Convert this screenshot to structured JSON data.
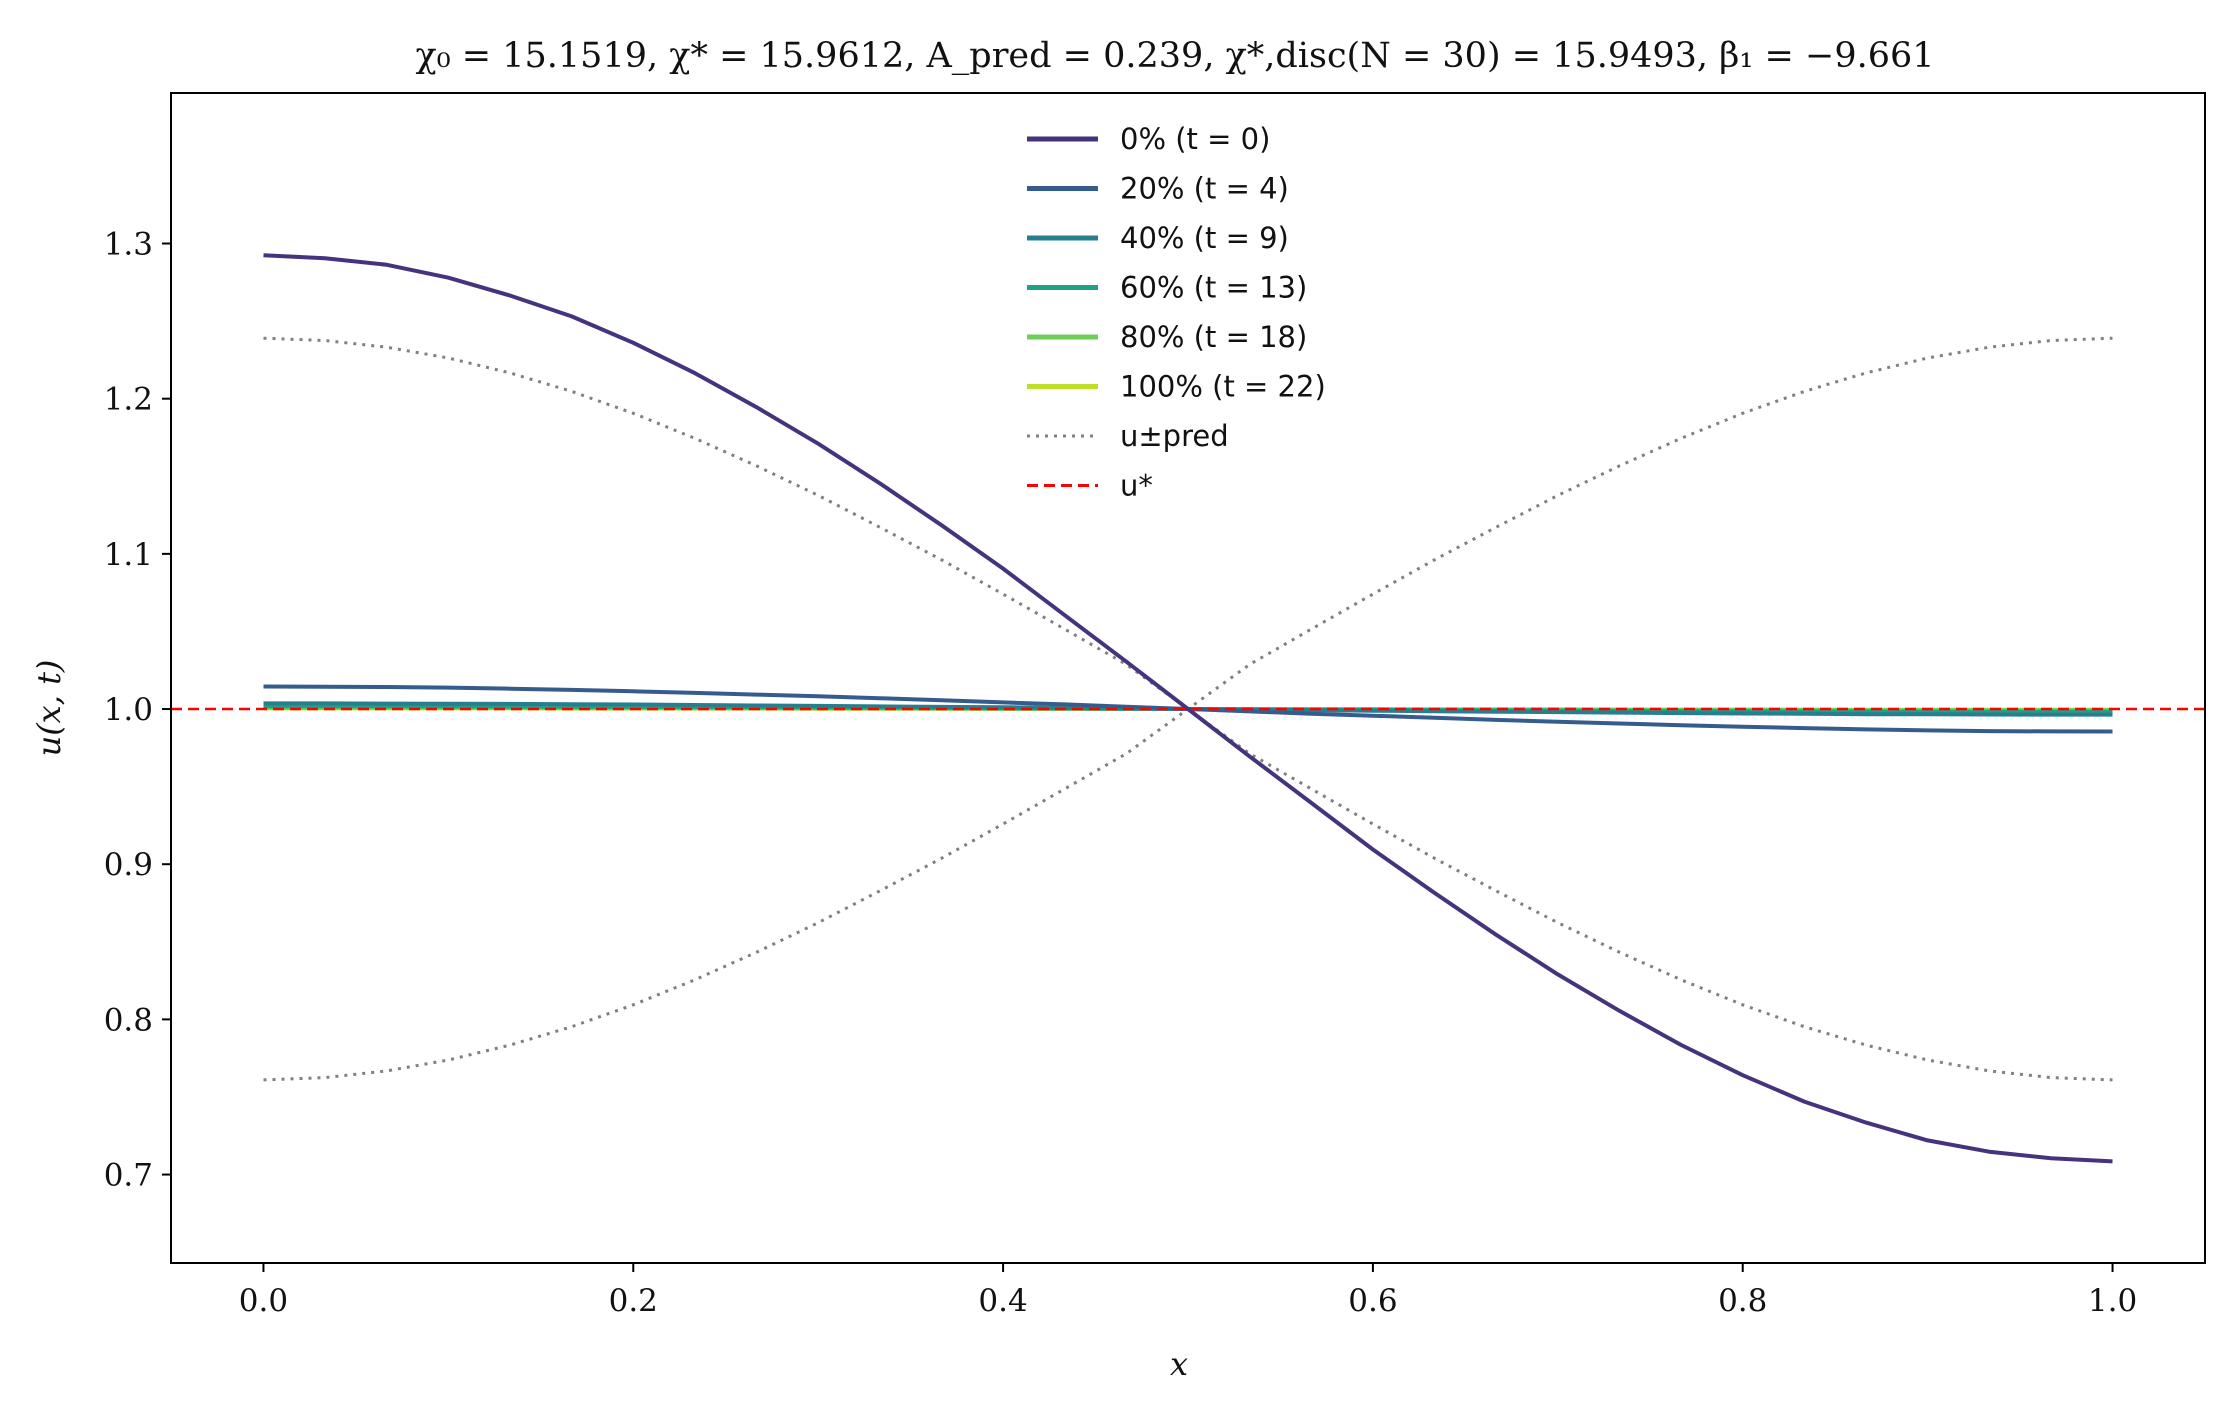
{
  "chart_data": {
    "type": "line",
    "title": "χ₀ = 15.1519,  χ* = 15.9612,  A_pred = 0.239,  χ*,disc(N = 30) = 15.9493,  β₁ = −9.661",
    "xlabel": "x",
    "ylabel": "u(x, t)",
    "xlim": [
      -0.05,
      1.05
    ],
    "ylim": [
      0.643,
      1.397
    ],
    "xticks": [
      0.0,
      0.2,
      0.4,
      0.6,
      0.8,
      1.0
    ],
    "xtick_labels": [
      "0.0",
      "0.2",
      "0.4",
      "0.6",
      "0.8",
      "1.0"
    ],
    "yticks": [
      0.7,
      0.8,
      0.9,
      1.0,
      1.1,
      1.2,
      1.3
    ],
    "ytick_labels": [
      "0.7",
      "0.8",
      "0.9",
      "1.0",
      "1.1",
      "1.2",
      "1.3"
    ],
    "grid": false,
    "legend_position": "top-center",
    "x": [
      0.0,
      0.0333,
      0.0667,
      0.1,
      0.1333,
      0.1667,
      0.2,
      0.2333,
      0.2667,
      0.3,
      0.3333,
      0.3667,
      0.4,
      0.4333,
      0.4667,
      0.5,
      0.5333,
      0.5667,
      0.6,
      0.6333,
      0.6667,
      0.7,
      0.7333,
      0.7667,
      0.8,
      0.8333,
      0.8667,
      0.9,
      0.9333,
      0.9667,
      1.0
    ],
    "series": [
      {
        "name": "0% (t = 0)",
        "color": "#46337e",
        "style": "solid",
        "values": [
          1.2925,
          1.2905,
          1.2863,
          1.278,
          1.2665,
          1.253,
          1.236,
          1.2165,
          1.1945,
          1.171,
          1.1455,
          1.1185,
          1.0905,
          1.0605,
          1.0305,
          1.0,
          0.9695,
          0.9395,
          0.9095,
          0.8815,
          0.8545,
          0.829,
          0.8055,
          0.7835,
          0.764,
          0.747,
          0.7335,
          0.722,
          0.7147,
          0.7105,
          0.7085
        ]
      },
      {
        "name": "20% (t = 4)",
        "color": "#365c8d",
        "style": "solid",
        "values": [
          1.0145,
          1.0144,
          1.0142,
          1.0138,
          1.0131,
          1.0123,
          1.0114,
          1.0104,
          1.0093,
          1.0082,
          1.007,
          1.0056,
          1.0043,
          1.003,
          1.0015,
          1.0,
          0.9985,
          0.997,
          0.9957,
          0.9944,
          0.993,
          0.9918,
          0.9907,
          0.9896,
          0.9886,
          0.9877,
          0.9869,
          0.9862,
          0.9858,
          0.9856,
          0.9855
        ]
      },
      {
        "name": "40% (t = 9)",
        "color": "#277f8e",
        "style": "solid",
        "values": [
          1.0036,
          1.0036,
          1.0035,
          1.0034,
          1.0033,
          1.0031,
          1.0029,
          1.0026,
          1.0023,
          1.002,
          1.0017,
          1.0014,
          1.0011,
          1.0007,
          1.0004,
          1.0,
          0.9996,
          0.9993,
          0.9989,
          0.9986,
          0.9983,
          0.998,
          0.9977,
          0.9974,
          0.9971,
          0.9969,
          0.9967,
          0.9966,
          0.9965,
          0.9964,
          0.9964
        ]
      },
      {
        "name": "60% (t = 13)",
        "color": "#1fa187",
        "style": "solid",
        "values": [
          1.0018,
          1.0018,
          1.0018,
          1.0017,
          1.0016,
          1.0015,
          1.0014,
          1.0013,
          1.0012,
          1.001,
          1.0009,
          1.0007,
          1.0005,
          1.0004,
          1.0002,
          1.0,
          0.9998,
          0.9996,
          0.9995,
          0.9993,
          0.9991,
          0.999,
          0.9988,
          0.9987,
          0.9986,
          0.9985,
          0.9984,
          0.9983,
          0.9982,
          0.9982,
          0.9982
        ]
      },
      {
        "name": "80% (t = 18)",
        "color": "#6ece58",
        "style": "solid",
        "values": [
          1.0008,
          1.0008,
          1.0008,
          1.0008,
          1.0007,
          1.0007,
          1.0006,
          1.0006,
          1.0005,
          1.0005,
          1.0004,
          1.0003,
          1.0002,
          1.0002,
          1.0001,
          1.0,
          0.9999,
          0.9998,
          0.9998,
          0.9997,
          0.9996,
          0.9995,
          0.9995,
          0.9994,
          0.9994,
          0.9993,
          0.9993,
          0.9992,
          0.9992,
          0.9992,
          0.9992
        ]
      },
      {
        "name": "100% (t = 22)",
        "color": "#bddf26",
        "style": "solid",
        "values": [
          1.0004,
          1.0004,
          1.0004,
          1.0004,
          1.0004,
          1.0003,
          1.0003,
          1.0003,
          1.0003,
          1.0002,
          1.0002,
          1.0002,
          1.0001,
          1.0001,
          1.0,
          1.0,
          1.0,
          0.9999,
          0.9999,
          0.9998,
          0.9998,
          0.9998,
          0.9997,
          0.9997,
          0.9997,
          0.9997,
          0.9996,
          0.9996,
          0.9996,
          0.9996,
          0.9996
        ]
      },
      {
        "name": "u±pred (upper)",
        "color": "#808080",
        "style": "dotted",
        "values": [
          1.239,
          1.2375,
          1.2332,
          1.2262,
          1.2166,
          1.2047,
          1.1906,
          1.1745,
          1.1567,
          1.1377,
          1.1172,
          1.0962,
          1.0741,
          1.0515,
          1.0287,
          1.0,
          0.9713,
          0.9485,
          0.9259,
          0.9038,
          0.8828,
          0.8623,
          0.8433,
          0.8255,
          0.8094,
          0.7953,
          0.7834,
          0.7738,
          0.7668,
          0.7625,
          0.761
        ]
      },
      {
        "name": "u±pred (lower)",
        "color": "#808080",
        "style": "dotted",
        "values": [
          0.761,
          0.7625,
          0.7668,
          0.7738,
          0.7834,
          0.7953,
          0.8094,
          0.8255,
          0.8433,
          0.8623,
          0.8828,
          0.9038,
          0.9259,
          0.9485,
          0.9713,
          1.0,
          1.0287,
          1.0515,
          1.0741,
          1.0962,
          1.1172,
          1.1377,
          1.1567,
          1.1745,
          1.1906,
          1.2047,
          1.2166,
          1.2262,
          1.2332,
          1.2375,
          1.239
        ]
      }
    ],
    "hline": {
      "name": "u*",
      "y": 1.0,
      "color": "#ff0000",
      "style": "dashed"
    },
    "legend": [
      {
        "label": "0% (t = 0)",
        "color": "#46337e",
        "style": "solid"
      },
      {
        "label": "20% (t = 4)",
        "color": "#365c8d",
        "style": "solid"
      },
      {
        "label": "40% (t = 9)",
        "color": "#277f8e",
        "style": "solid"
      },
      {
        "label": "60% (t = 13)",
        "color": "#1fa187",
        "style": "solid"
      },
      {
        "label": "80% (t = 18)",
        "color": "#6ece58",
        "style": "solid"
      },
      {
        "label": "100% (t = 22)",
        "color": "#bddf26",
        "style": "solid"
      },
      {
        "label": "u±pred",
        "color": "#808080",
        "style": "dotted"
      },
      {
        "label": "u*",
        "color": "#ff0000",
        "style": "dashed"
      }
    ]
  }
}
